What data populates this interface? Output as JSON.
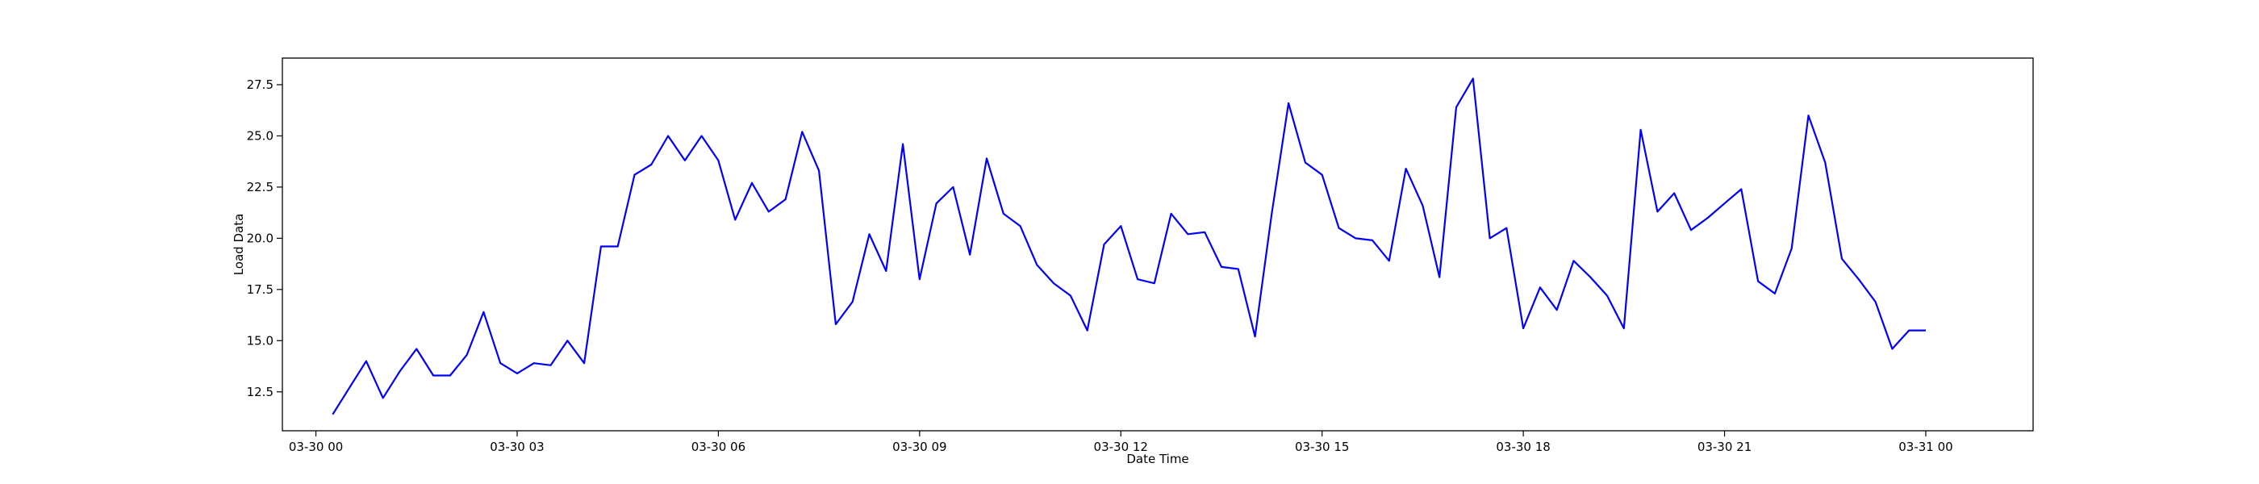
{
  "chart_data": {
    "type": "line",
    "title": "",
    "xlabel": "Date Time",
    "ylabel": "Load Data",
    "x_tick_labels": [
      "03-30 00",
      "03-30 03",
      "03-30 06",
      "03-30 09",
      "03-30 12",
      "03-30 15",
      "03-30 18",
      "03-30 21",
      "03-31 00"
    ],
    "x_tick_hours": [
      0,
      3,
      6,
      9,
      12,
      15,
      18,
      21,
      24
    ],
    "y_tick_labels": [
      "12.5",
      "15.0",
      "17.5",
      "20.0",
      "22.5",
      "25.0",
      "27.5"
    ],
    "y_tick_values": [
      12.5,
      15.0,
      17.5,
      20.0,
      22.5,
      25.0,
      27.5
    ],
    "xlim": [
      -0.5,
      25.6
    ],
    "ylim": [
      10.6,
      28.8
    ],
    "grid": false,
    "line_color": "#0000ff",
    "series": [
      {
        "x": [
          0.25,
          0.5,
          0.75,
          1,
          1.25,
          1.5,
          1.75,
          2,
          2.25,
          2.5,
          2.75,
          3,
          3.25,
          3.5,
          3.75,
          4,
          4.25,
          4.5,
          4.75,
          5,
          5.25,
          5.5,
          5.75,
          6,
          6.25,
          6.5,
          6.75,
          7,
          7.25,
          7.5,
          7.75,
          8,
          8.25,
          8.5,
          8.75,
          9,
          9.25,
          9.5,
          9.75,
          10,
          10.25,
          10.5,
          10.75,
          11,
          11.25,
          11.5,
          11.75,
          12,
          12.25,
          12.5,
          12.75,
          13,
          13.25,
          13.5,
          13.75,
          14,
          14.25,
          14.5,
          14.75,
          15,
          15.25,
          15.5,
          15.75,
          16,
          16.25,
          16.5,
          16.75,
          17,
          17.25,
          17.5,
          17.75,
          18,
          18.25,
          18.5,
          18.75,
          19,
          19.25,
          19.5,
          19.75,
          20,
          20.25,
          20.5,
          20.75,
          21,
          21.25,
          21.5,
          21.75,
          22,
          22.25,
          22.5,
          22.75,
          23,
          23.25,
          23.5,
          23.75,
          24
        ],
        "y": [
          11.4,
          12.7,
          14.0,
          12.2,
          13.5,
          14.6,
          13.3,
          13.3,
          14.3,
          16.4,
          13.9,
          13.4,
          13.9,
          13.8,
          15.0,
          13.9,
          19.6,
          19.6,
          23.1,
          23.6,
          25.0,
          23.8,
          25.0,
          23.8,
          20.9,
          22.7,
          21.3,
          21.9,
          25.2,
          23.3,
          15.8,
          16.9,
          20.2,
          18.4,
          24.6,
          18.0,
          21.7,
          22.5,
          19.2,
          23.9,
          21.2,
          20.6,
          18.7,
          17.8,
          17.2,
          15.5,
          19.7,
          20.6,
          18.0,
          17.8,
          21.2,
          20.2,
          20.3,
          18.6,
          18.5,
          15.2,
          21.2,
          26.6,
          23.7,
          23.1,
          20.5,
          20.0,
          19.9,
          18.9,
          23.4,
          21.6,
          18.1,
          26.4,
          27.8,
          20.0,
          20.5,
          15.6,
          17.6,
          16.5,
          18.9,
          18.1,
          17.2,
          15.6,
          25.3,
          21.3,
          22.2,
          20.4,
          21.0,
          21.7,
          22.4,
          17.9,
          17.3,
          19.5,
          26.0,
          23.7,
          19.0,
          18.0,
          16.9,
          14.6,
          15.5,
          15.5
        ]
      }
    ]
  }
}
